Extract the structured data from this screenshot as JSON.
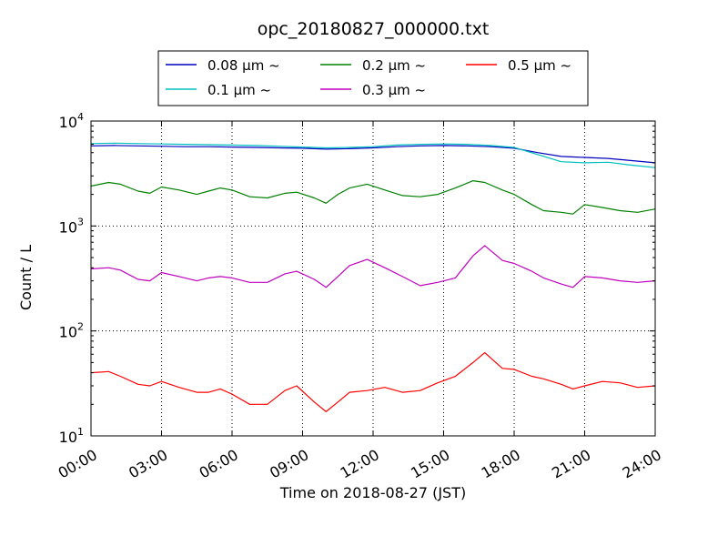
{
  "chart_data": {
    "type": "line",
    "title": "opc_20180827_000000.txt",
    "xlabel": "Time on 2018-08-27 (JST)",
    "ylabel": "Count / L",
    "xlim_hours": [
      0,
      24
    ],
    "x_ticks": [
      {
        "hour": 0,
        "label": "00:00"
      },
      {
        "hour": 3,
        "label": "03:00"
      },
      {
        "hour": 6,
        "label": "06:00"
      },
      {
        "hour": 9,
        "label": "09:00"
      },
      {
        "hour": 12,
        "label": "12:00"
      },
      {
        "hour": 15,
        "label": "15:00"
      },
      {
        "hour": 18,
        "label": "18:00"
      },
      {
        "hour": 21,
        "label": "21:00"
      },
      {
        "hour": 24,
        "label": "24:00"
      }
    ],
    "y_scale": "log",
    "ylim": [
      10,
      10000
    ],
    "y_ticks": [
      {
        "value": 10,
        "base": "10",
        "exp": "1"
      },
      {
        "value": 100,
        "base": "10",
        "exp": "2"
      },
      {
        "value": 1000,
        "base": "10",
        "exp": "3"
      },
      {
        "value": 10000,
        "base": "10",
        "exp": "4"
      }
    ],
    "grid": true,
    "legend_position": "top-center, above plot, 3 columns",
    "series": [
      {
        "name": "0.08 μm ~",
        "color": "#0000bf",
        "x": [
          0,
          1,
          2,
          3,
          4,
          5,
          6,
          7,
          8,
          9,
          10,
          11,
          12,
          13,
          14,
          15,
          16,
          17,
          18,
          19,
          20,
          21,
          22,
          23,
          24
        ],
        "y": [
          5800,
          5850,
          5800,
          5750,
          5700,
          5700,
          5650,
          5600,
          5550,
          5500,
          5400,
          5450,
          5550,
          5700,
          5800,
          5850,
          5800,
          5700,
          5500,
          5000,
          4600,
          4500,
          4400,
          4200,
          4000
        ]
      },
      {
        "name": "0.1 μm ~",
        "color": "#00bfbf",
        "x": [
          0,
          1,
          2,
          3,
          4,
          5,
          6,
          7,
          8,
          9,
          10,
          11,
          12,
          13,
          14,
          15,
          16,
          17,
          18,
          19,
          20,
          21,
          22,
          23,
          24
        ],
        "y": [
          6100,
          6150,
          6100,
          6050,
          6000,
          5950,
          5900,
          5850,
          5750,
          5650,
          5550,
          5600,
          5700,
          5900,
          6000,
          6050,
          6000,
          5850,
          5600,
          4800,
          4100,
          4000,
          4050,
          3800,
          3600
        ]
      },
      {
        "name": "0.2 μm ~",
        "color": "#008000",
        "x": [
          0,
          0.75,
          1.25,
          2,
          2.5,
          3,
          3.75,
          4.5,
          5,
          5.5,
          6,
          6.75,
          7.5,
          8.25,
          8.75,
          9.5,
          10,
          10.5,
          11,
          11.75,
          12.5,
          13.25,
          14,
          14.75,
          15.5,
          16.25,
          16.75,
          17.5,
          18,
          18.75,
          19.25,
          20,
          20.5,
          21,
          21.75,
          22.5,
          23.25,
          24
        ],
        "y": [
          2400,
          2600,
          2500,
          2150,
          2050,
          2350,
          2200,
          2000,
          2150,
          2300,
          2200,
          1900,
          1850,
          2050,
          2100,
          1850,
          1650,
          2000,
          2300,
          2500,
          2200,
          1950,
          1900,
          2000,
          2300,
          2700,
          2600,
          2200,
          2000,
          1600,
          1400,
          1350,
          1300,
          1600,
          1500,
          1400,
          1350,
          1450
        ]
      },
      {
        "name": "0.3 μm ~",
        "color": "#bf00bf",
        "x": [
          0,
          0.75,
          1.25,
          2,
          2.5,
          3,
          3.75,
          4.5,
          5,
          5.5,
          6,
          6.75,
          7.5,
          8.25,
          8.75,
          9.5,
          10,
          10.5,
          11,
          11.75,
          12.5,
          13.25,
          14,
          14.75,
          15.5,
          16.25,
          16.75,
          17.5,
          18,
          18.75,
          19.25,
          20,
          20.5,
          21,
          21.75,
          22.5,
          23.25,
          24
        ],
        "y": [
          390,
          400,
          380,
          310,
          300,
          360,
          330,
          300,
          320,
          330,
          320,
          290,
          290,
          350,
          370,
          310,
          260,
          330,
          420,
          480,
          400,
          330,
          270,
          290,
          320,
          520,
          650,
          470,
          440,
          370,
          320,
          280,
          260,
          330,
          320,
          300,
          290,
          300
        ]
      },
      {
        "name": "0.5 μm ~",
        "color": "#ff0000",
        "x": [
          0,
          0.75,
          1.25,
          2,
          2.5,
          3,
          3.75,
          4.5,
          5,
          5.5,
          6,
          6.75,
          7.5,
          8.25,
          8.75,
          9.5,
          10,
          10.5,
          11,
          11.75,
          12.5,
          13.25,
          14,
          14.75,
          15.5,
          16.25,
          16.75,
          17.5,
          18,
          18.75,
          19.25,
          20,
          20.5,
          21,
          21.75,
          22.5,
          23.25,
          24
        ],
        "y": [
          40,
          41,
          37,
          31,
          30,
          33,
          29,
          26,
          26,
          28,
          25,
          20,
          20,
          27,
          30,
          21,
          17,
          21,
          26,
          27,
          29,
          26,
          27,
          32,
          37,
          50,
          62,
          44,
          43,
          37,
          35,
          31,
          28,
          30,
          33,
          32,
          29,
          30
        ]
      }
    ]
  }
}
